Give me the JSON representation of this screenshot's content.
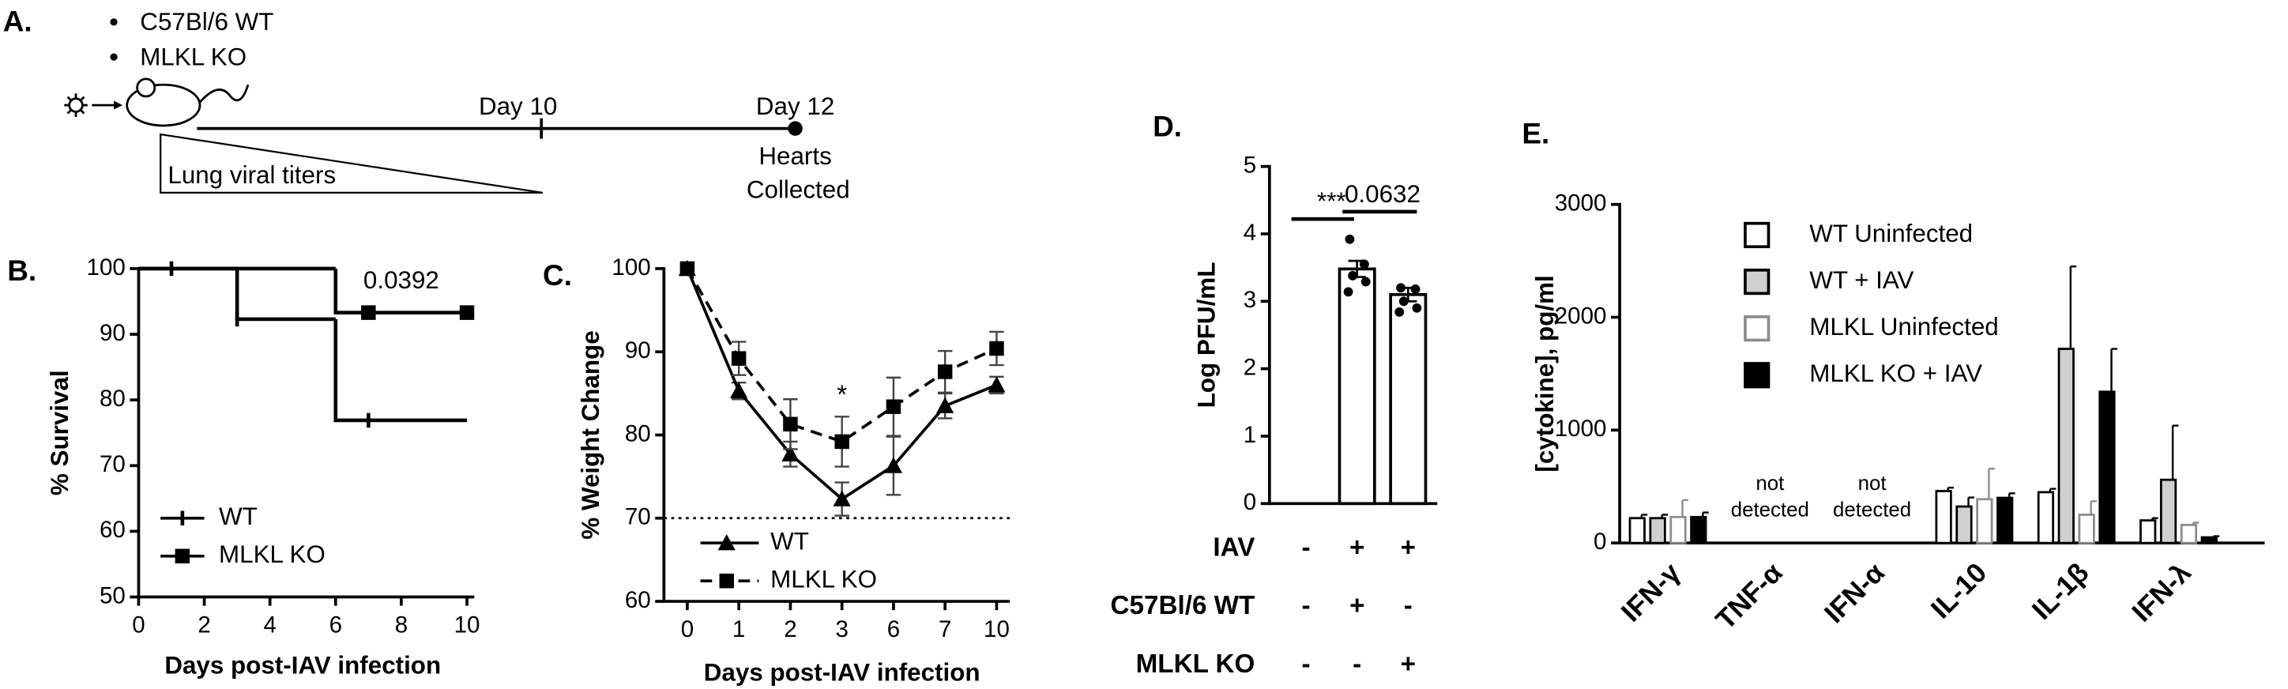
{
  "diagram": {
    "panel_label": "A.",
    "groups": [
      "C57Bl/6 WT",
      "MLKL KO"
    ],
    "timepoints": [
      "Day 10",
      "Day 12"
    ],
    "endpoint": [
      "Hearts",
      "Collected"
    ],
    "titer_label": "Lung viral titers"
  },
  "chart_data": [
    {
      "type": "step",
      "panel_label": "B.",
      "xlabel": "Days post-IAV infection",
      "ylabel": "% Survival",
      "xlim": [
        0,
        10
      ],
      "xticks": [
        0,
        2,
        4,
        6,
        8,
        10
      ],
      "ylim": [
        50,
        100
      ],
      "yticks": [
        50,
        60,
        70,
        80,
        90,
        100
      ],
      "annotation": "0.0392",
      "series": [
        {
          "name": "WT",
          "color": "#000000",
          "marker": "tick",
          "x": [
            0,
            3,
            6,
            10
          ],
          "values": [
            100,
            92.3,
            76.9,
            76.9
          ],
          "censored_x": [
            1,
            3,
            7
          ]
        },
        {
          "name": "MLKL KO",
          "color": "#000000",
          "marker": "square",
          "x": [
            0,
            6,
            10
          ],
          "values": [
            100,
            93.3,
            93.3
          ],
          "censored_x": [
            7,
            10
          ]
        }
      ]
    },
    {
      "type": "line",
      "panel_label": "C.",
      "xlabel": "Days post-IAV infection",
      "ylabel": "% Weight Change",
      "categories": [
        "0",
        "1",
        "2",
        "3",
        "6",
        "7",
        "10"
      ],
      "ylim": [
        60,
        100
      ],
      "yticks": [
        60,
        70,
        80,
        90,
        100
      ],
      "reference_line": 70,
      "annotation": "*",
      "series": [
        {
          "name": "WT",
          "color": "#000000",
          "marker": "triangle",
          "line_style": "solid",
          "values": [
            100,
            85.3,
            77.7,
            72.3,
            76.3,
            83.5,
            86
          ],
          "errors": [
            0,
            1,
            1.5,
            2,
            3.5,
            1.5,
            1
          ]
        },
        {
          "name": "MLKL KO",
          "color": "#000000",
          "marker": "square",
          "line_style": "dashed",
          "values": [
            100,
            89.2,
            81.3,
            79.2,
            83.4,
            87.6,
            90.4
          ],
          "errors": [
            0,
            2,
            3,
            3,
            3.5,
            2.5,
            2
          ]
        }
      ]
    },
    {
      "type": "bar",
      "panel_label": "D.",
      "ylabel": "Log PFU/mL",
      "ylim": [
        0,
        5
      ],
      "yticks": [
        0,
        1,
        2,
        3,
        4,
        5
      ],
      "values": [
        null,
        3.48,
        3.1
      ],
      "errors": [
        null,
        0.12,
        0.1
      ],
      "points": [
        [],
        [
          3.92,
          3.55,
          3.38,
          3.29,
          3.14
        ],
        [
          3.2,
          3.18,
          3.0,
          2.9,
          2.84
        ]
      ],
      "brackets": [
        "***",
        "0.0632"
      ],
      "conditions": [
        {
          "label": "IAV",
          "cells": [
            "-",
            "+",
            "+"
          ]
        },
        {
          "label": "C57Bl/6 WT",
          "cells": [
            "-",
            "+",
            "-"
          ]
        },
        {
          "label": "MLKL KO",
          "cells": [
            "-",
            "-",
            "+"
          ]
        }
      ]
    },
    {
      "type": "grouped_bar",
      "panel_label": "E.",
      "ylabel": "[cytokine], pg/ml",
      "ylim": [
        0,
        3000
      ],
      "yticks": [
        0,
        1000,
        2000,
        3000
      ],
      "categories": [
        "IFN-γ",
        "TNF-α",
        "IFN-α",
        "IL-10",
        "IL-1β",
        "IFN-λ"
      ],
      "not_detected": [
        "not",
        "detected"
      ],
      "series": [
        {
          "name": "WT Uninfected",
          "color": "#ffffff",
          "stroke": "#000000",
          "values": [
            220,
            null,
            null,
            460,
            450,
            200
          ],
          "errors": [
            30,
            null,
            null,
            30,
            30,
            20
          ]
        },
        {
          "name": "WT + IAV",
          "color": "#d0d0d0",
          "stroke": "#000000",
          "values": [
            220,
            null,
            null,
            323,
            1720,
            560
          ],
          "errors": [
            30,
            null,
            null,
            80,
            730,
            480
          ]
        },
        {
          "name": "MLKL Uninfected",
          "color": "#ffffff",
          "stroke": "#8c8c8c",
          "values": [
            230,
            null,
            null,
            388,
            250,
            160
          ],
          "errors": [
            150,
            null,
            null,
            270,
            120,
            20
          ]
        },
        {
          "name": "MLKL KO + IAV",
          "color": "#000000",
          "stroke": "#000000",
          "values": [
            230,
            null,
            null,
            400,
            1340,
            50
          ],
          "errors": [
            40,
            null,
            null,
            40,
            380,
            10
          ]
        }
      ]
    }
  ]
}
